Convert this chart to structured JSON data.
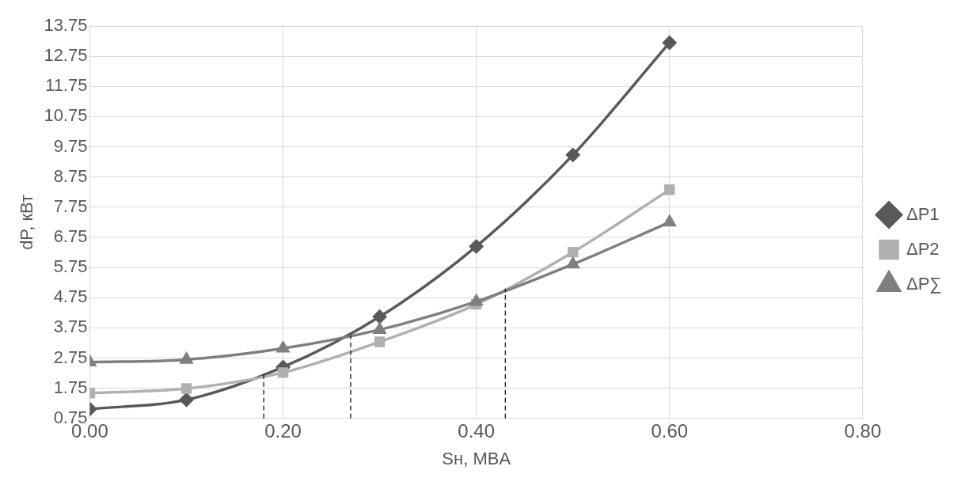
{
  "chart_data": {
    "type": "line",
    "xlabel": "Sн, MBA",
    "ylabel": "dP, кВт",
    "xlim": [
      0,
      0.8
    ],
    "xticks": [
      {
        "value": 0,
        "label": "0.00"
      },
      {
        "value": 0.2,
        "label": "0.20"
      },
      {
        "value": 0.4,
        "label": "0.40"
      },
      {
        "value": 0.6,
        "label": "0.60"
      },
      {
        "value": 0.8,
        "label": "0.80"
      }
    ],
    "ylim": [
      0.75,
      13.75
    ],
    "yticks": [
      0.75,
      1.75,
      2.75,
      3.75,
      4.75,
      5.75,
      6.75,
      7.75,
      8.75,
      9.75,
      10.75,
      11.75,
      12.75,
      13.75
    ],
    "grid": true,
    "legend": "right",
    "series": [
      {
        "name": "ΔP1",
        "color": "#595959",
        "marker": "diamond",
        "x": [
          0,
          0.1,
          0.2,
          0.3,
          0.4,
          0.5,
          0.6
        ],
        "values": [
          1.06,
          1.37,
          2.45,
          4.12,
          6.45,
          9.48,
          13.2
        ]
      },
      {
        "name": "ΔP2",
        "color": "#b0b0b0",
        "marker": "square",
        "x": [
          0,
          0.1,
          0.2,
          0.3,
          0.4,
          0.5,
          0.6
        ],
        "values": [
          1.59,
          1.74,
          2.27,
          3.29,
          4.53,
          6.26,
          8.33
        ]
      },
      {
        "name": "ΔP∑",
        "color": "#7f7f7f",
        "marker": "triangle",
        "x": [
          0,
          0.1,
          0.2,
          0.3,
          0.4,
          0.5,
          0.6
        ],
        "values": [
          2.61,
          2.7,
          3.07,
          3.69,
          4.62,
          5.86,
          7.25
        ]
      }
    ],
    "ref_lines": [
      {
        "axis": "x",
        "value": 0.18,
        "color": "#000000",
        "line_style": "dashed"
      },
      {
        "axis": "x",
        "value": 0.27,
        "color": "#000000",
        "line_style": "dashed"
      },
      {
        "axis": "x",
        "value": 0.43,
        "color": "#000000",
        "line_style": "dashed"
      }
    ]
  }
}
